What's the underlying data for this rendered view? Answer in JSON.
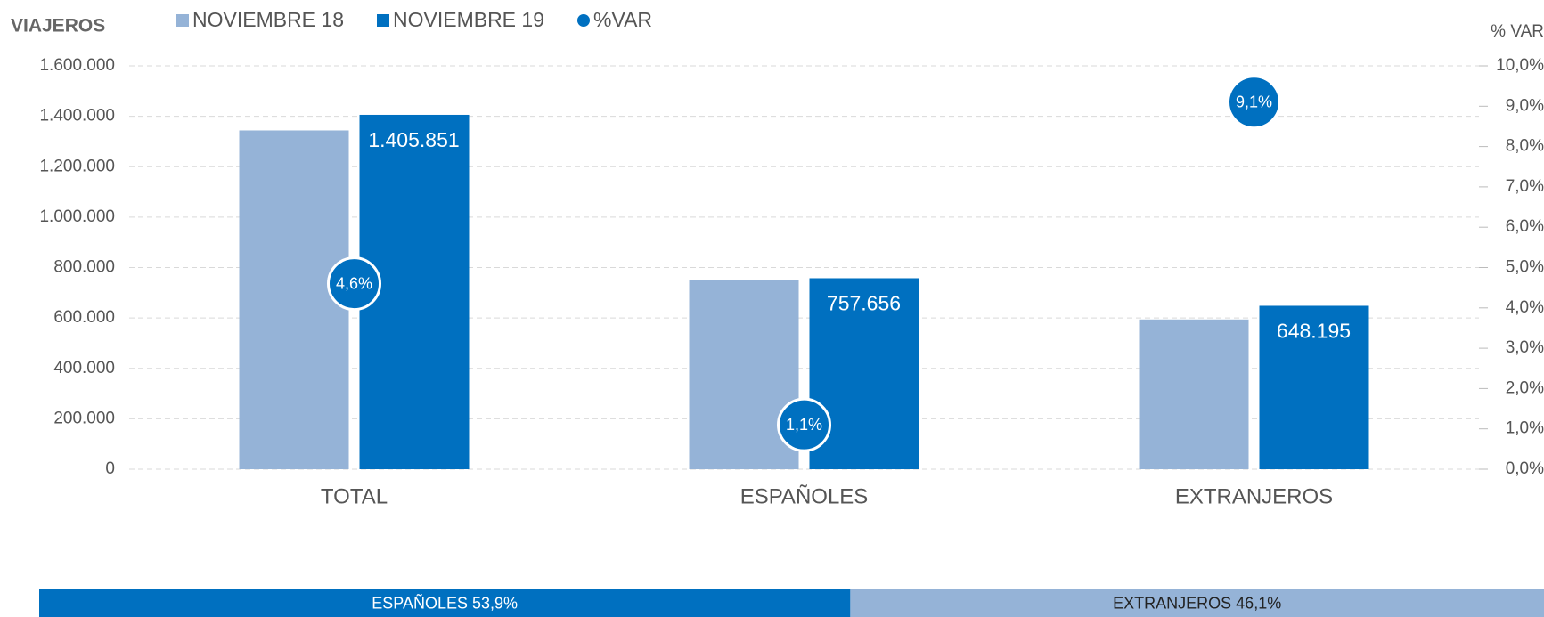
{
  "chart_data": [
    {
      "type": "bar",
      "ylabel": "VIAJEROS",
      "y2label": "% VAR",
      "categories": [
        "TOTAL",
        "ESPAÑOLES",
        "EXTRANJEROS"
      ],
      "series": [
        {
          "name": "NOVIEMBRE 18",
          "color": "#95b3d7",
          "values": [
            1344000,
            749400,
            594100
          ]
        },
        {
          "name": "NOVIEMBRE 19",
          "color": "#0070c0",
          "values": [
            1405851,
            757656,
            648195
          ],
          "value_labels": [
            "1.405.851",
            "757.656",
            "648.195"
          ]
        },
        {
          "name": "%VAR",
          "color": "#0070c0",
          "type": "scatter",
          "axis": "y2",
          "values": [
            4.6,
            1.1,
            9.1
          ],
          "value_labels": [
            "4,6%",
            "1,1%",
            "9,1%"
          ]
        }
      ],
      "ylim": [
        0,
        1600000
      ],
      "yticks": [
        0,
        {
          "value": 200000,
          "label": "200.000"
        },
        {
          "value": 400000,
          "label": "400.000"
        },
        {
          "value": 600000,
          "label": "600.000"
        },
        {
          "value": 800000,
          "label": "800.000"
        },
        {
          "value": 1000000,
          "label": "1.000.000"
        },
        {
          "value": 1200000,
          "label": "1.200.000"
        },
        {
          "value": 1400000,
          "label": "1.400.000"
        },
        {
          "value": 1600000,
          "label": "1.600.000"
        }
      ],
      "y2lim": [
        0,
        10
      ],
      "y2ticks": [
        {
          "value": 0,
          "label": "0,0%"
        },
        {
          "value": 1,
          "label": "1,0%"
        },
        {
          "value": 2,
          "label": "2,0%"
        },
        {
          "value": 3,
          "label": "3,0%"
        },
        {
          "value": 4,
          "label": "4,0%"
        },
        {
          "value": 5,
          "label": "5,0%"
        },
        {
          "value": 6,
          "label": "6,0%"
        },
        {
          "value": 7,
          "label": "7,0%"
        },
        {
          "value": 8,
          "label": "8,0%"
        },
        {
          "value": 9,
          "label": "9,0%"
        },
        {
          "value": 10,
          "label": "10,0%"
        }
      ],
      "grid": true,
      "legend": "top"
    },
    {
      "type": "stacked-bar",
      "categories": [
        "ESPAÑOLES",
        "EXTRANJEROS"
      ],
      "values": [
        53.9,
        46.1
      ],
      "value_labels": [
        "53,9%",
        "46,1%"
      ],
      "colors": [
        "#0070c0",
        "#95b3d7"
      ],
      "text_colors": [
        "#ffffff",
        "#222222"
      ]
    }
  ]
}
